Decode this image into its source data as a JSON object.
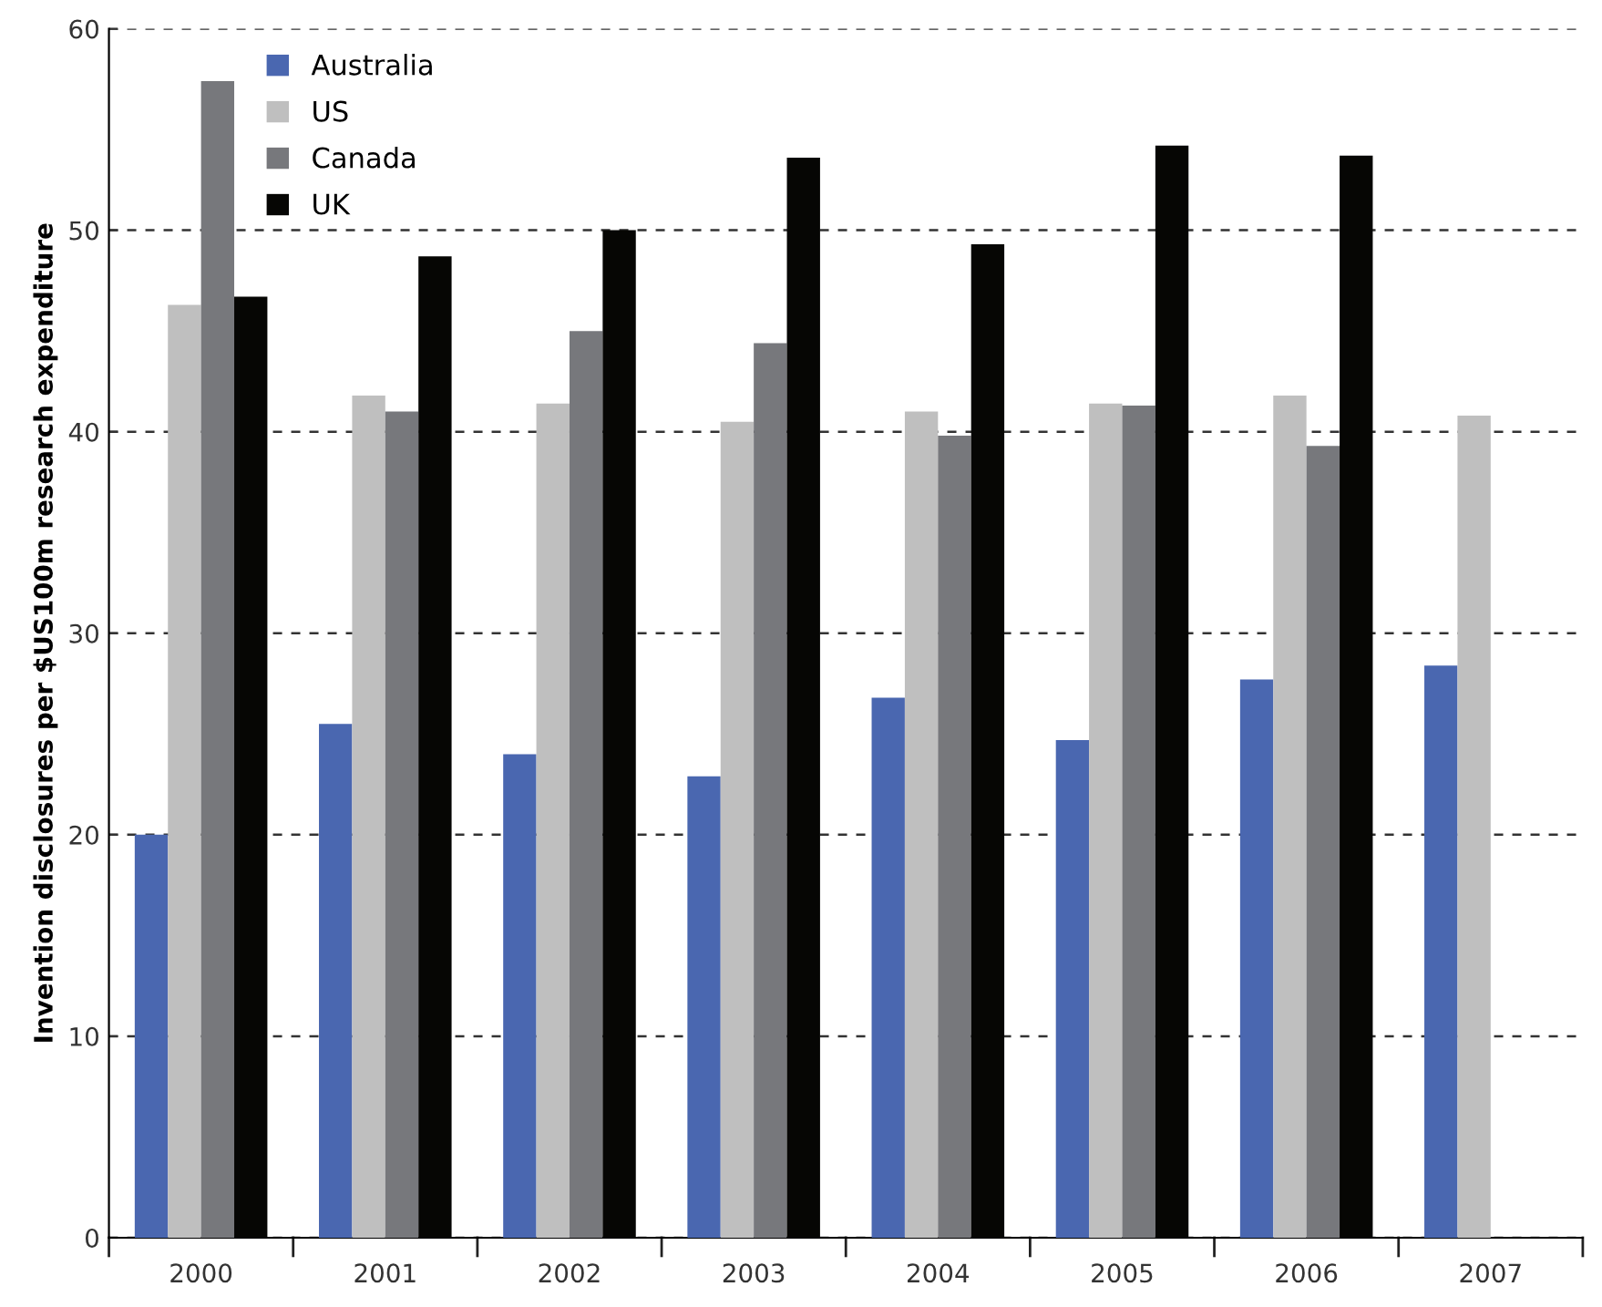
{
  "chart_data": {
    "type": "bar",
    "ylabel": "Invention disclosures per $US100m research expenditure",
    "categories": [
      "2000",
      "2001",
      "2002",
      "2003",
      "2004",
      "2005",
      "2006",
      "2007"
    ],
    "series": [
      {
        "name": "Australia",
        "color": "#4a67b0",
        "values": [
          20.0,
          25.5,
          24.0,
          22.9,
          26.8,
          24.7,
          27.7,
          28.4
        ]
      },
      {
        "name": "US",
        "color": "#bfbfbf",
        "values": [
          46.3,
          41.8,
          41.4,
          40.5,
          41.0,
          41.4,
          41.8,
          40.8
        ]
      },
      {
        "name": "Canada",
        "color": "#77787c",
        "values": [
          57.4,
          41.0,
          45.0,
          44.4,
          39.8,
          41.3,
          39.3,
          0
        ]
      },
      {
        "name": "UK",
        "color": "#060604",
        "values": [
          46.7,
          48.7,
          50.0,
          53.6,
          49.3,
          54.2,
          53.7,
          0
        ]
      }
    ],
    "ylim": [
      0,
      60
    ],
    "yticks": [
      0,
      10,
      20,
      30,
      40,
      50,
      60
    ],
    "grid": "y",
    "legend": "top left"
  }
}
